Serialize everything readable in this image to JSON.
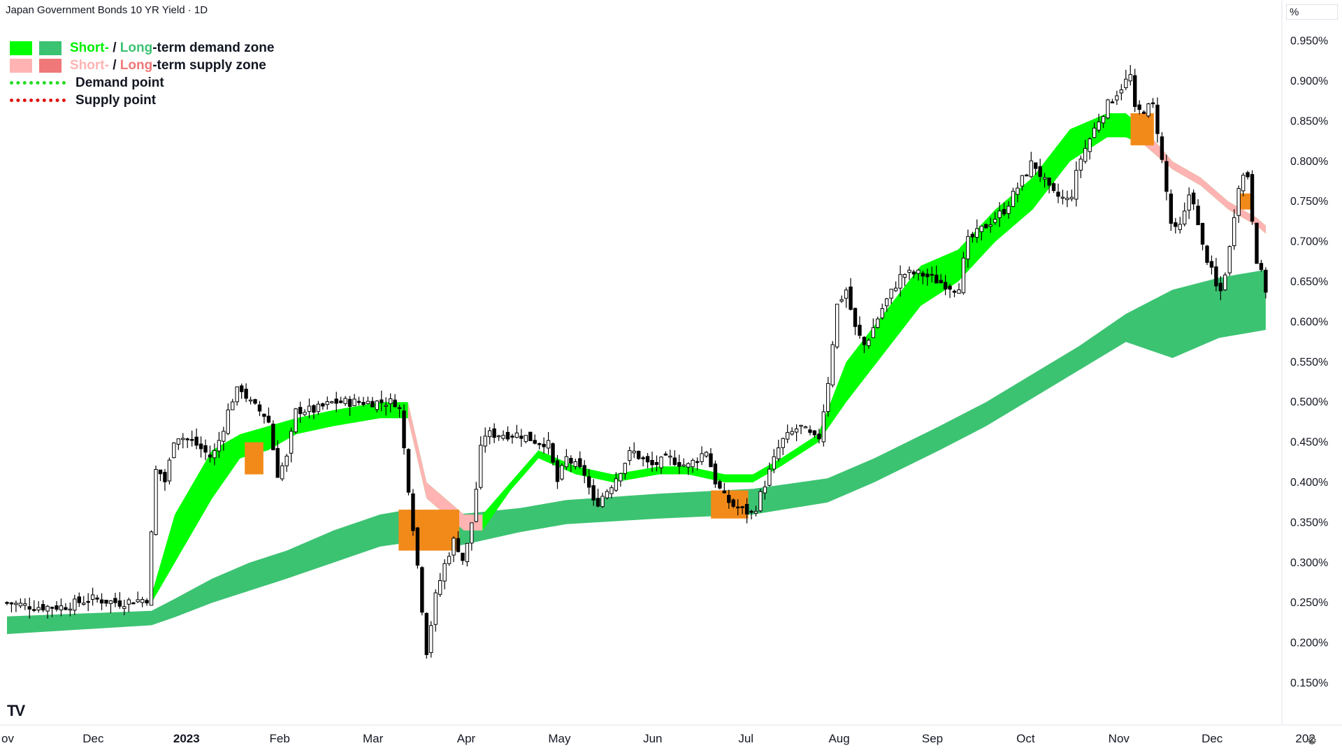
{
  "title": "Japan Government Bonds 10 YR Yield · 1D",
  "unit_label": "%",
  "legend": {
    "demand_short": "Short-",
    "demand_sep": " / ",
    "demand_long": "Long",
    "demand_rest": "-term demand zone",
    "supply_short": "Short-",
    "supply_sep": " / ",
    "supply_long": "Long",
    "supply_rest": "-term supply zone",
    "demand_point": "Demand point",
    "supply_point": "Supply point"
  },
  "colors": {
    "short_demand": "#00ff00",
    "long_demand": "#3cc372",
    "short_supply": "#ffb3b3",
    "long_supply": "#f07878",
    "overlap": "#f28a1a",
    "demand_point": "#22dd22",
    "supply_point": "#e01010"
  },
  "chart_data": {
    "type": "candlestick",
    "ylabel": "%",
    "ylim": [
      0.13,
      1.0
    ],
    "y_ticks": [
      "0.950%",
      "0.900%",
      "0.850%",
      "0.800%",
      "0.750%",
      "0.700%",
      "0.650%",
      "0.600%",
      "0.550%",
      "0.500%",
      "0.450%",
      "0.400%",
      "0.350%",
      "0.300%",
      "0.250%",
      "0.200%",
      "0.150%"
    ],
    "x_ticks": [
      {
        "label": "ov",
        "month": 0
      },
      {
        "label": "Dec",
        "month": 1
      },
      {
        "label": "2023",
        "month": 2
      },
      {
        "label": "Feb",
        "month": 3
      },
      {
        "label": "Mar",
        "month": 4
      },
      {
        "label": "Apr",
        "month": 5
      },
      {
        "label": "May",
        "month": 6
      },
      {
        "label": "Jun",
        "month": 7
      },
      {
        "label": "Jul",
        "month": 8
      },
      {
        "label": "Aug",
        "month": 9
      },
      {
        "label": "Sep",
        "month": 10
      },
      {
        "label": "Oct",
        "month": 11
      },
      {
        "label": "Nov",
        "month": 12
      },
      {
        "label": "Dec",
        "month": 13
      },
      {
        "label": "202",
        "month": 14
      }
    ],
    "close_path": [
      [
        0.0,
        0.25
      ],
      [
        0.3,
        0.245
      ],
      [
        0.6,
        0.245
      ],
      [
        0.9,
        0.255
      ],
      [
        1.2,
        0.25
      ],
      [
        1.5,
        0.255
      ],
      [
        1.6,
        0.42
      ],
      [
        1.7,
        0.4
      ],
      [
        1.8,
        0.46
      ],
      [
        2.0,
        0.45
      ],
      [
        2.2,
        0.43
      ],
      [
        2.3,
        0.46
      ],
      [
        2.4,
        0.5
      ],
      [
        2.5,
        0.52
      ],
      [
        2.6,
        0.5
      ],
      [
        2.8,
        0.48
      ],
      [
        2.9,
        0.41
      ],
      [
        3.0,
        0.43
      ],
      [
        3.1,
        0.49
      ],
      [
        3.3,
        0.49
      ],
      [
        3.5,
        0.5
      ],
      [
        3.8,
        0.5
      ],
      [
        4.0,
        0.5
      ],
      [
        4.2,
        0.5
      ],
      [
        4.3,
        0.4
      ],
      [
        4.4,
        0.3
      ],
      [
        4.5,
        0.19
      ],
      [
        4.6,
        0.26
      ],
      [
        4.7,
        0.3
      ],
      [
        4.8,
        0.33
      ],
      [
        4.9,
        0.3
      ],
      [
        5.0,
        0.36
      ],
      [
        5.1,
        0.46
      ],
      [
        5.3,
        0.46
      ],
      [
        5.5,
        0.46
      ],
      [
        5.7,
        0.45
      ],
      [
        5.8,
        0.45
      ],
      [
        5.9,
        0.4
      ],
      [
        6.0,
        0.43
      ],
      [
        6.2,
        0.41
      ],
      [
        6.3,
        0.37
      ],
      [
        6.5,
        0.4
      ],
      [
        6.7,
        0.44
      ],
      [
        6.9,
        0.42
      ],
      [
        7.1,
        0.43
      ],
      [
        7.3,
        0.42
      ],
      [
        7.5,
        0.44
      ],
      [
        7.6,
        0.4
      ],
      [
        7.7,
        0.38
      ],
      [
        7.8,
        0.37
      ],
      [
        8.0,
        0.36
      ],
      [
        8.1,
        0.39
      ],
      [
        8.3,
        0.45
      ],
      [
        8.5,
        0.47
      ],
      [
        8.7,
        0.45
      ],
      [
        8.8,
        0.52
      ],
      [
        8.9,
        0.62
      ],
      [
        9.0,
        0.64
      ],
      [
        9.1,
        0.59
      ],
      [
        9.2,
        0.57
      ],
      [
        9.4,
        0.62
      ],
      [
        9.6,
        0.66
      ],
      [
        9.8,
        0.66
      ],
      [
        10.0,
        0.65
      ],
      [
        10.2,
        0.64
      ],
      [
        10.3,
        0.7
      ],
      [
        10.5,
        0.72
      ],
      [
        10.7,
        0.74
      ],
      [
        10.9,
        0.78
      ],
      [
        11.0,
        0.8
      ],
      [
        11.2,
        0.76
      ],
      [
        11.4,
        0.75
      ],
      [
        11.5,
        0.8
      ],
      [
        11.7,
        0.85
      ],
      [
        11.8,
        0.87
      ],
      [
        12.0,
        0.9
      ],
      [
        12.0,
        0.95
      ],
      [
        12.1,
        0.86
      ],
      [
        12.3,
        0.87
      ],
      [
        12.4,
        0.79
      ],
      [
        12.5,
        0.71
      ],
      [
        12.6,
        0.72
      ],
      [
        12.7,
        0.77
      ],
      [
        12.8,
        0.7
      ],
      [
        12.9,
        0.67
      ],
      [
        13.0,
        0.63
      ],
      [
        13.1,
        0.68
      ],
      [
        13.2,
        0.77
      ],
      [
        13.3,
        0.79
      ],
      [
        13.4,
        0.68
      ],
      [
        13.5,
        0.64
      ]
    ],
    "long_zone": {
      "x": [
        0.0,
        1.55,
        1.8,
        2.2,
        2.6,
        3.0,
        3.5,
        4.0,
        4.3,
        4.8,
        5.0,
        5.5,
        6.0,
        7.0,
        8.0,
        8.8,
        9.3,
        10.0,
        10.5,
        11.0,
        11.5,
        12.0,
        12.5,
        13.0,
        13.5
      ],
      "upper": [
        0.233,
        0.24,
        0.255,
        0.28,
        0.3,
        0.315,
        0.34,
        0.36,
        0.366,
        0.36,
        0.362,
        0.368,
        0.378,
        0.386,
        0.392,
        0.405,
        0.43,
        0.47,
        0.5,
        0.535,
        0.57,
        0.61,
        0.64,
        0.655,
        0.665
      ],
      "lower": [
        0.211,
        0.222,
        0.232,
        0.25,
        0.265,
        0.28,
        0.3,
        0.32,
        0.325,
        0.32,
        0.325,
        0.338,
        0.348,
        0.355,
        0.36,
        0.375,
        0.4,
        0.44,
        0.47,
        0.505,
        0.54,
        0.575,
        0.555,
        0.58,
        0.59
      ]
    },
    "short_zone": {
      "x": [
        1.55,
        1.8,
        2.2,
        2.5,
        2.8,
        3.1,
        3.5,
        4.0,
        4.3,
        4.5,
        4.9,
        5.1,
        5.4,
        5.7,
        6.1,
        6.5,
        7.0,
        7.3,
        7.7,
        8.0,
        8.3,
        8.7,
        9.0,
        9.4,
        9.8,
        10.2,
        10.6,
        11.0,
        11.4,
        11.8,
        12.0,
        12.2,
        12.5,
        12.8,
        13.1,
        13.4,
        13.5
      ],
      "upper": [
        0.26,
        0.36,
        0.44,
        0.46,
        0.47,
        0.48,
        0.49,
        0.5,
        0.5,
        0.4,
        0.36,
        0.36,
        0.4,
        0.44,
        0.42,
        0.41,
        0.42,
        0.42,
        0.41,
        0.41,
        0.43,
        0.46,
        0.55,
        0.61,
        0.67,
        0.69,
        0.74,
        0.78,
        0.84,
        0.86,
        0.86,
        0.84,
        0.8,
        0.78,
        0.75,
        0.73,
        0.72
      ],
      "lower": [
        0.25,
        0.3,
        0.38,
        0.43,
        0.44,
        0.46,
        0.47,
        0.48,
        0.48,
        0.38,
        0.34,
        0.34,
        0.39,
        0.43,
        0.41,
        0.4,
        0.41,
        0.41,
        0.4,
        0.4,
        0.42,
        0.45,
        0.5,
        0.56,
        0.62,
        0.65,
        0.7,
        0.74,
        0.8,
        0.83,
        0.83,
        0.82,
        0.79,
        0.77,
        0.74,
        0.72,
        0.71
      ]
    },
    "overlap_spans": [
      {
        "x0": 2.55,
        "x1": 2.75,
        "y_top": 0.45,
        "y_bot": 0.41
      },
      {
        "x0": 4.2,
        "x1": 4.85,
        "y_top": 0.366,
        "y_bot": 0.315
      },
      {
        "x0": 7.55,
        "x1": 7.95,
        "y_top": 0.39,
        "y_bot": 0.355
      },
      {
        "x0": 12.05,
        "x1": 12.3,
        "y_top": 0.86,
        "y_bot": 0.82
      },
      {
        "x0": 13.2,
        "x1": 13.35,
        "y_top": 0.76,
        "y_bot": 0.74
      }
    ]
  }
}
